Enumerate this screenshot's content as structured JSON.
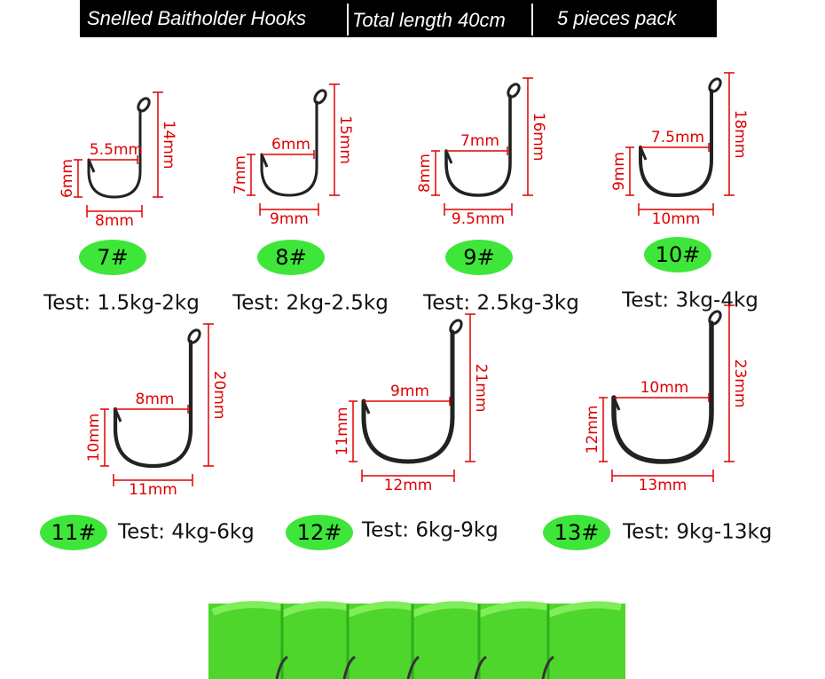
{
  "header": {
    "items": [
      "Snelled Baitholder Hooks",
      "Total length 40cm",
      "5 pieces pack"
    ]
  },
  "hooks": [
    {
      "size": "7#",
      "test": "Test: 1.5kg-2kg",
      "gap": "5.5mm",
      "height": "14mm",
      "barb": "6mm",
      "width": "8mm"
    },
    {
      "size": "8#",
      "test": "Test: 2kg-2.5kg",
      "gap": "6mm",
      "height": "15mm",
      "barb": "7mm",
      "width": "9mm"
    },
    {
      "size": "9#",
      "test": "Test: 2.5kg-3kg",
      "gap": "7mm",
      "height": "16mm",
      "barb": "8mm",
      "width": "9.5mm"
    },
    {
      "size": "10#",
      "test": "Test: 3kg-4kg",
      "gap": "7.5mm",
      "height": "18mm",
      "barb": "9mm",
      "width": "10mm"
    },
    {
      "size": "11#",
      "test": "Test: 4kg-6kg",
      "gap": "8mm",
      "height": "20mm",
      "barb": "10mm",
      "width": "11mm"
    },
    {
      "size": "12#",
      "test": "Test: 6kg-9kg",
      "gap": "9mm",
      "height": "21mm",
      "barb": "11mm",
      "width": "12mm"
    },
    {
      "size": "13#",
      "test": "Test: 9kg-13kg",
      "gap": "10mm",
      "height": "23mm",
      "barb": "12mm",
      "width": "13mm"
    }
  ]
}
